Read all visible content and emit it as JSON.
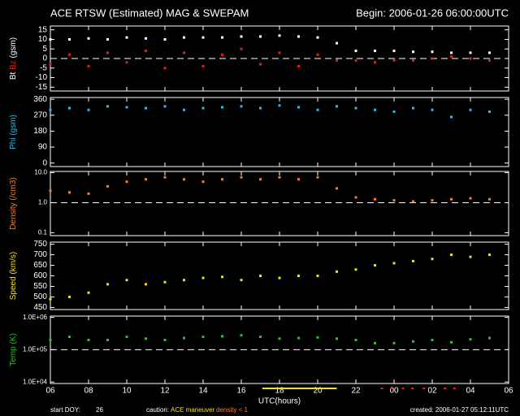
{
  "title": "ACE RTSW (Estimated) MAG & SWEPAM",
  "begin": "Begin: 2006-01-26 06:00:00UTC",
  "xlabel": "UTC(hours)",
  "footer": {
    "start_doy_label": "start DOY:",
    "start_doy": 26,
    "caution": "caution:",
    "maneuver": "ACE maneuver",
    "density_low": "density < 1",
    "created": "created: 2006-01-27 05:12:11UTC"
  },
  "caution_marks": {
    "maneuver": [
      11.1,
      15.0
    ],
    "density_low": [
      17.3,
      17.8,
      18.4,
      18.9,
      19.5,
      20.6,
      21.1
    ]
  },
  "chart_data": [
    {
      "type": "scatter",
      "ylabel": "(gsm)",
      "series": [
        {
          "name": "Bt",
          "color": "#ffffff",
          "values": [
            10,
            10,
            10.5,
            10,
            11,
            10.5,
            10,
            11,
            11,
            11,
            11.5,
            11.5,
            12,
            11.5,
            11,
            8,
            4,
            4,
            4,
            3.5,
            3.5,
            3,
            3,
            3
          ]
        },
        {
          "name": "Bz",
          "color": "#e02020",
          "values": [
            -3,
            2,
            -4,
            3,
            -2,
            4,
            -5,
            3,
            -4,
            2,
            5,
            -3,
            3,
            -4,
            2,
            -1,
            -1,
            -2,
            -1,
            -1,
            0,
            1,
            0,
            -1
          ]
        }
      ],
      "x": [
        0,
        1,
        2,
        3,
        4,
        5,
        6,
        7,
        8,
        9,
        10,
        11,
        12,
        13,
        14,
        15,
        16,
        17,
        18,
        19,
        20,
        21,
        22,
        23
      ],
      "ylim": [
        -17,
        17
      ],
      "yticks": [
        -15,
        -10,
        -5,
        0,
        5,
        10,
        15
      ],
      "hline": 0,
      "xlim": [
        0,
        24
      ],
      "xticks": [
        {
          "value": 0,
          "label": "06"
        },
        {
          "value": 2,
          "label": "08"
        },
        {
          "value": 4,
          "label": "10"
        },
        {
          "value": 6,
          "label": "12"
        },
        {
          "value": 8,
          "label": "14"
        },
        {
          "value": 10,
          "label": "16"
        },
        {
          "value": 12,
          "label": "18"
        },
        {
          "value": 14,
          "label": "20"
        },
        {
          "value": 16,
          "label": "22"
        },
        {
          "value": 18,
          "label": "00"
        },
        {
          "value": 20,
          "label": "02"
        },
        {
          "value": 22,
          "label": "04"
        },
        {
          "value": 24,
          "label": "06"
        }
      ]
    },
    {
      "type": "scatter",
      "ylabel": "Phi (gsm)",
      "label_color": "#30b8e8",
      "series": [
        {
          "name": null,
          "color": "#30b8e8",
          "values": [
            300,
            310,
            300,
            320,
            315,
            310,
            320,
            300,
            310,
            315,
            320,
            310,
            325,
            315,
            300,
            320,
            310,
            300,
            290,
            310,
            300,
            260,
            300,
            290
          ]
        }
      ],
      "x": [
        0,
        1,
        2,
        3,
        4,
        5,
        6,
        7,
        8,
        9,
        10,
        11,
        12,
        13,
        14,
        15,
        16,
        17,
        18,
        19,
        20,
        21,
        22,
        23
      ],
      "ylim": [
        -20,
        370
      ],
      "yticks": [
        0,
        90,
        180,
        270,
        360
      ],
      "xlim": [
        0,
        24
      ],
      "xticks": [
        {
          "value": 0,
          "label": "06"
        },
        {
          "value": 2,
          "label": "08"
        },
        {
          "value": 4,
          "label": "10"
        },
        {
          "value": 6,
          "label": "12"
        },
        {
          "value": 8,
          "label": "14"
        },
        {
          "value": 10,
          "label": "16"
        },
        {
          "value": 12,
          "label": "18"
        },
        {
          "value": 14,
          "label": "20"
        },
        {
          "value": 16,
          "label": "22"
        },
        {
          "value": 18,
          "label": "00"
        },
        {
          "value": 20,
          "label": "02"
        },
        {
          "value": 22,
          "label": "04"
        },
        {
          "value": 24,
          "label": "06"
        }
      ]
    },
    {
      "type": "scatter",
      "ylabel": "Density (/cm3)",
      "label_color": "#f08030",
      "log": true,
      "series": [
        {
          "name": null,
          "color": "#f08030",
          "values": [
            2.5,
            2.2,
            2.0,
            3.5,
            5,
            6,
            7,
            6,
            5,
            6,
            7,
            6,
            7,
            6,
            7,
            3,
            1.5,
            1.3,
            1.2,
            1.1,
            1.2,
            1.3,
            1.4,
            1.3
          ]
        }
      ],
      "x": [
        0,
        1,
        2,
        3,
        4,
        5,
        6,
        7,
        8,
        9,
        10,
        11,
        12,
        13,
        14,
        15,
        16,
        17,
        18,
        19,
        20,
        21,
        22,
        23
      ],
      "ylim": [
        0.08,
        11
      ],
      "yticks": [
        {
          "value": 0.1,
          "label": "0.1"
        },
        {
          "value": 1,
          "label": "1.0"
        },
        {
          "value": 10,
          "label": "10.0"
        }
      ],
      "hline": 1,
      "xlim": [
        0,
        24
      ],
      "xticks": [
        {
          "value": 0,
          "label": "06"
        },
        {
          "value": 2,
          "label": "08"
        },
        {
          "value": 4,
          "label": "10"
        },
        {
          "value": 6,
          "label": "12"
        },
        {
          "value": 8,
          "label": "14"
        },
        {
          "value": 10,
          "label": "16"
        },
        {
          "value": 12,
          "label": "18"
        },
        {
          "value": 14,
          "label": "20"
        },
        {
          "value": 16,
          "label": "22"
        },
        {
          "value": 18,
          "label": "00"
        },
        {
          "value": 20,
          "label": "02"
        },
        {
          "value": 22,
          "label": "04"
        },
        {
          "value": 24,
          "label": "06"
        }
      ]
    },
    {
      "type": "scatter",
      "ylabel": "Speed (km/s)",
      "label_color": "#f0e020",
      "series": [
        {
          "name": null,
          "color": "#f0e020",
          "values": [
            490,
            500,
            520,
            560,
            580,
            560,
            570,
            580,
            590,
            595,
            580,
            600,
            590,
            600,
            600,
            620,
            630,
            650,
            660,
            670,
            680,
            700,
            690,
            700
          ]
        }
      ],
      "x": [
        0,
        1,
        2,
        3,
        4,
        5,
        6,
        7,
        8,
        9,
        10,
        11,
        12,
        13,
        14,
        15,
        16,
        17,
        18,
        19,
        20,
        21,
        22,
        23
      ],
      "ylim": [
        440,
        760
      ],
      "yticks": [
        450,
        500,
        550,
        600,
        650,
        700,
        750
      ],
      "xlim": [
        0,
        24
      ],
      "xticks": [
        {
          "value": 0,
          "label": "06"
        },
        {
          "value": 2,
          "label": "08"
        },
        {
          "value": 4,
          "label": "10"
        },
        {
          "value": 6,
          "label": "12"
        },
        {
          "value": 8,
          "label": "14"
        },
        {
          "value": 10,
          "label": "16"
        },
        {
          "value": 12,
          "label": "18"
        },
        {
          "value": 14,
          "label": "20"
        },
        {
          "value": 16,
          "label": "22"
        },
        {
          "value": 18,
          "label": "00"
        },
        {
          "value": 20,
          "label": "02"
        },
        {
          "value": 22,
          "label": "04"
        },
        {
          "value": 24,
          "label": "06"
        }
      ]
    },
    {
      "type": "scatter",
      "ylabel": "Temp (K)",
      "label_color": "#30c030",
      "log": true,
      "series": [
        {
          "name": null,
          "color": "#30c030",
          "values": [
            200000,
            250000,
            200000,
            200000,
            250000,
            220000,
            200000,
            230000,
            250000,
            260000,
            280000,
            250000,
            220000,
            230000,
            240000,
            220000,
            200000,
            160000,
            160000,
            180000,
            200000,
            170000,
            210000,
            230000
          ]
        }
      ],
      "x": [
        0,
        1,
        2,
        3,
        4,
        5,
        6,
        7,
        8,
        9,
        10,
        11,
        12,
        13,
        14,
        15,
        16,
        17,
        18,
        19,
        20,
        21,
        22,
        23
      ],
      "ylim": [
        9000,
        1100000
      ],
      "yticks": [
        {
          "value": 10000,
          "label": "1.0E+04"
        },
        {
          "value": 100000,
          "label": "1.0E+05"
        },
        {
          "value": 1000000,
          "label": "1.0E+06"
        }
      ],
      "hline": 100000,
      "xlim": [
        0,
        24
      ],
      "xticks": [
        {
          "value": 0,
          "label": "06"
        },
        {
          "value": 2,
          "label": "08"
        },
        {
          "value": 4,
          "label": "10"
        },
        {
          "value": 6,
          "label": "12"
        },
        {
          "value": 8,
          "label": "14"
        },
        {
          "value": 10,
          "label": "16"
        },
        {
          "value": 12,
          "label": "18"
        },
        {
          "value": 14,
          "label": "20"
        },
        {
          "value": 16,
          "label": "22"
        },
        {
          "value": 18,
          "label": "00"
        },
        {
          "value": 20,
          "label": "02"
        },
        {
          "value": 22,
          "label": "04"
        },
        {
          "value": 24,
          "label": "06"
        }
      ]
    }
  ]
}
